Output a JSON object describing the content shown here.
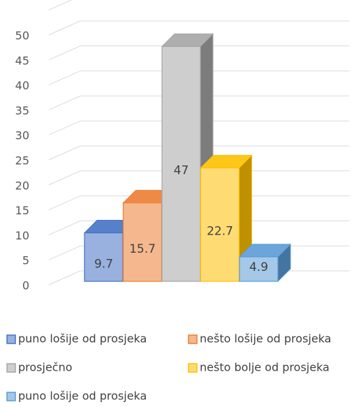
{
  "chart_data": {
    "type": "bar3d",
    "series": [
      {
        "name": "puno lošije od prosjeka",
        "color": "#4472c4",
        "values": [
          9.7
        ]
      },
      {
        "name": "nešto lošije od prosjeka",
        "color": "#ed7d31",
        "values": [
          15.7
        ]
      },
      {
        "name": "prosječno",
        "color": "#a5a5a5",
        "values": [
          47
        ]
      },
      {
        "name": "nešto bolje od prosjeka",
        "color": "#ffc000",
        "values": [
          22.7
        ]
      },
      {
        "name": "puno lošije od prosjeka",
        "color": "#5b9bd5",
        "values": [
          4.9
        ]
      }
    ],
    "ylim": [
      0,
      55
    ],
    "yticks": [
      0,
      5,
      10,
      15,
      20,
      25,
      30,
      35,
      40,
      45,
      50
    ],
    "grid": true,
    "legend": "bottom"
  }
}
